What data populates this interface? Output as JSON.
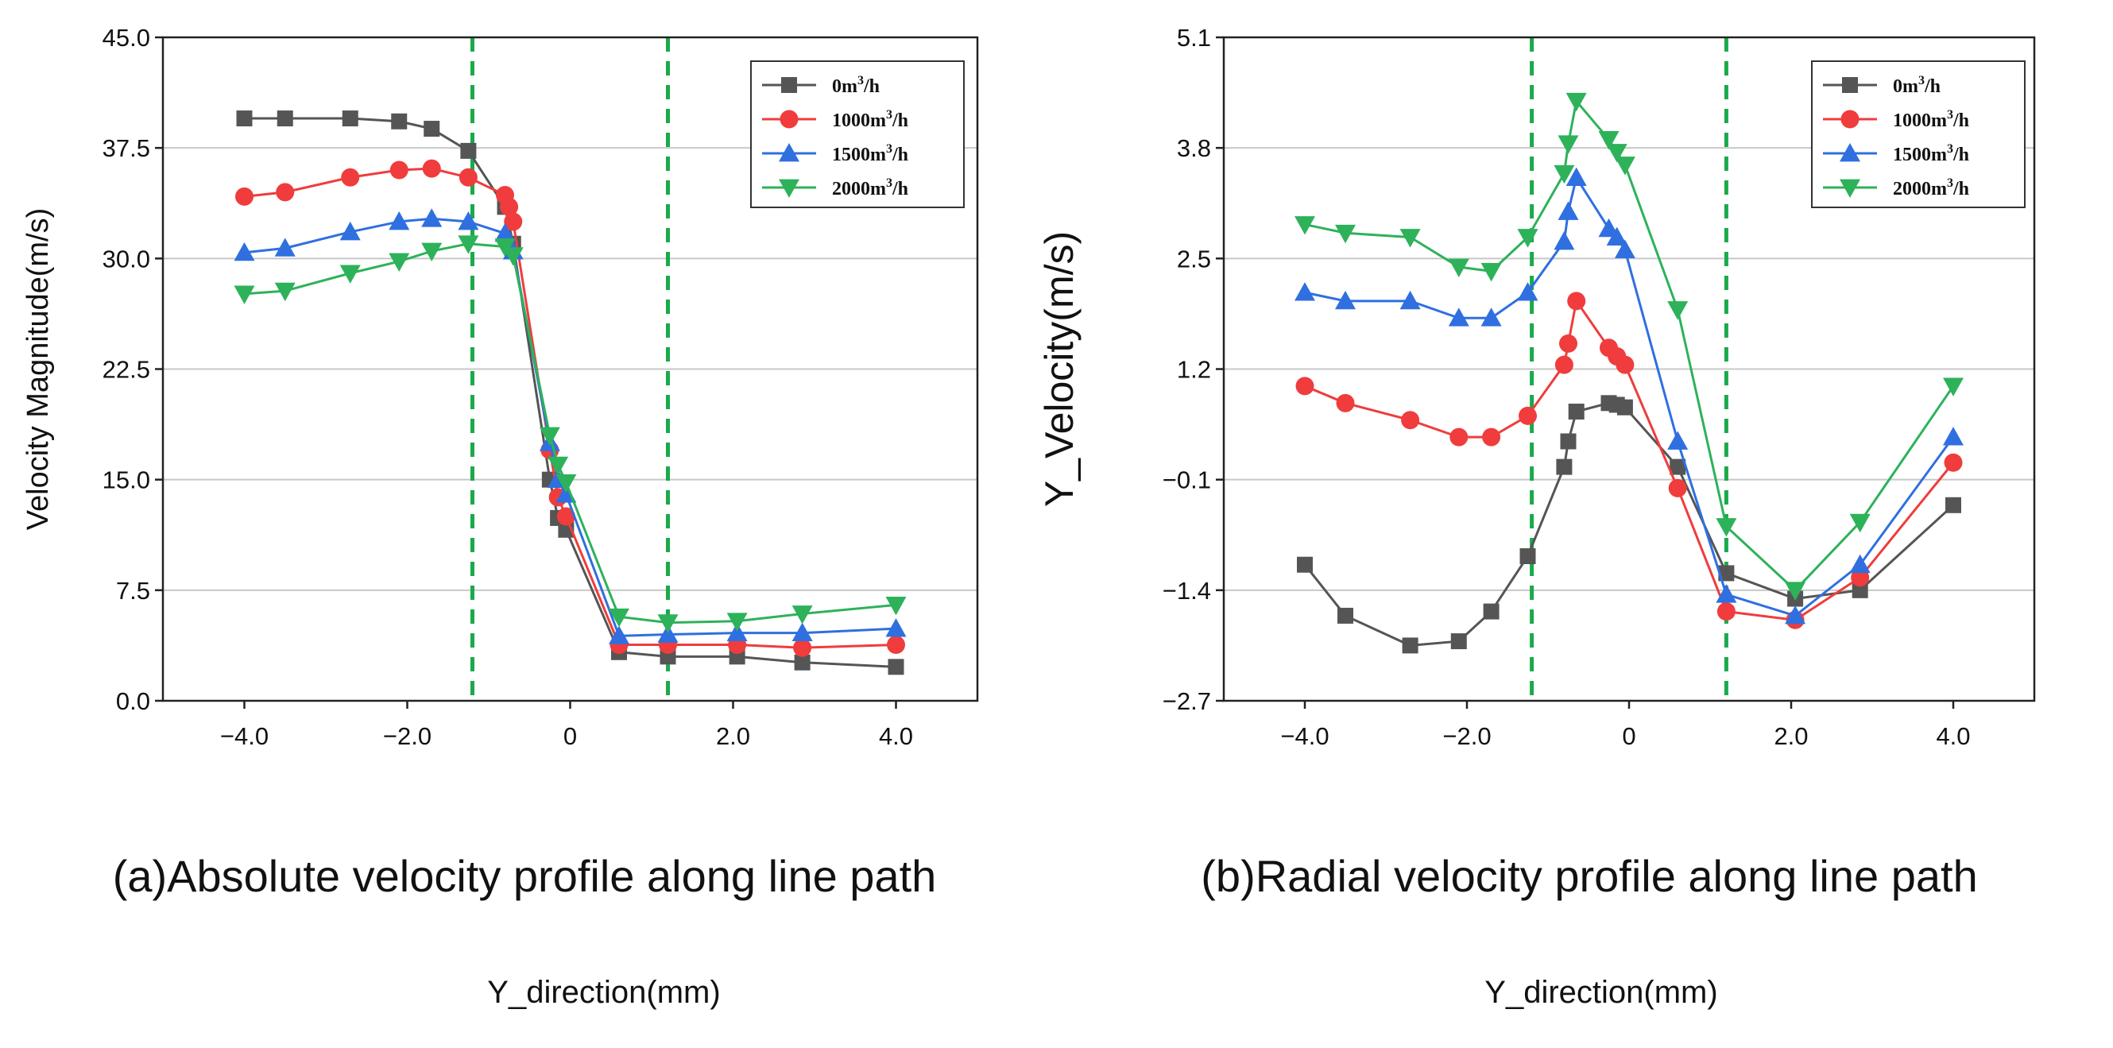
{
  "chart_data": [
    {
      "type": "line",
      "caption": "(a)Absolute velocity profile along line path",
      "xlabel": "Y_direction(mm)",
      "ylabel": "Velocity Magnitude(m/s)",
      "xlim": [
        -5,
        5
      ],
      "ylim": [
        0,
        45
      ],
      "xticks": [
        -4,
        -2,
        0,
        2,
        4
      ],
      "xtick_labels": [
        "−4.0",
        "−2.0",
        "0",
        "2.0",
        "4.0"
      ],
      "yticks": [
        0,
        7.5,
        15,
        22.5,
        30,
        37.5,
        45
      ],
      "ytick_labels": [
        "0.0",
        "7.5",
        "15.0",
        "22.5",
        "30.0",
        "37.5",
        "45.0"
      ],
      "grid": true,
      "legend_position": "top-right",
      "vlines": [
        -1.2,
        1.2
      ],
      "series": [
        {
          "name": "0m³/h",
          "label_base": "0m",
          "label_sup": "3",
          "label_tail": "/h",
          "color": "#555555",
          "marker": "square",
          "x": [
            -4.0,
            -3.5,
            -2.7,
            -2.1,
            -1.7,
            -1.25,
            -0.8,
            -0.7,
            -0.25,
            -0.15,
            -0.05,
            0.6,
            1.2,
            2.05,
            2.85,
            4.0
          ],
          "y": [
            39.5,
            39.5,
            39.5,
            39.3,
            38.8,
            37.3,
            33.5,
            31.0,
            15.0,
            12.4,
            11.6,
            3.3,
            3.0,
            3.0,
            2.6,
            2.3
          ]
        },
        {
          "name": "1000m³/h",
          "label_base": "1000m",
          "label_sup": "3",
          "label_tail": "/h",
          "color": "#f03c3c",
          "marker": "circle",
          "x": [
            -4.0,
            -3.5,
            -2.7,
            -2.1,
            -1.7,
            -1.25,
            -0.8,
            -0.75,
            -0.7,
            -0.25,
            -0.15,
            -0.05,
            0.6,
            1.2,
            2.05,
            2.85,
            4.0
          ],
          "y": [
            34.2,
            34.5,
            35.5,
            36.0,
            36.1,
            35.5,
            34.3,
            33.5,
            32.5,
            17.0,
            13.8,
            12.5,
            3.8,
            3.8,
            3.8,
            3.6,
            3.8
          ]
        },
        {
          "name": "1500m³/h",
          "label_base": "1500m",
          "label_sup": "3",
          "label_tail": "/h",
          "color": "#2f6fe0",
          "marker": "triangle-up",
          "x": [
            -4.0,
            -3.5,
            -2.7,
            -2.1,
            -1.7,
            -1.25,
            -0.8,
            -0.7,
            -0.25,
            -0.15,
            -0.05,
            0.6,
            1.2,
            2.05,
            2.85,
            4.0
          ],
          "y": [
            30.4,
            30.7,
            31.8,
            32.5,
            32.7,
            32.5,
            31.7,
            30.5,
            17.5,
            15.0,
            14.0,
            4.4,
            4.5,
            4.6,
            4.6,
            4.9
          ]
        },
        {
          "name": "2000m³/h",
          "label_base": "2000m",
          "label_sup": "3",
          "label_tail": "/h",
          "color": "#2db25a",
          "marker": "triangle-down",
          "x": [
            -4.0,
            -3.5,
            -2.7,
            -2.1,
            -1.7,
            -1.25,
            -0.8,
            -0.7,
            -0.25,
            -0.15,
            -0.05,
            0.6,
            1.2,
            2.05,
            2.85,
            4.0
          ],
          "y": [
            27.6,
            27.8,
            29.0,
            29.8,
            30.5,
            31.0,
            30.8,
            30.2,
            18.0,
            16.0,
            14.8,
            5.7,
            5.3,
            5.4,
            5.9,
            6.5
          ]
        }
      ]
    },
    {
      "type": "line",
      "caption": "(b)Radial velocity profile along line path",
      "xlabel": "Y_direction(mm)",
      "ylabel": "Y_Velocity(m/s)",
      "xlim": [
        -5,
        5
      ],
      "ylim": [
        -2.7,
        5.1
      ],
      "xticks": [
        -4,
        -2,
        0,
        2,
        4
      ],
      "xtick_labels": [
        "−4.0",
        "−2.0",
        "0",
        "2.0",
        "4.0"
      ],
      "yticks": [
        -2.7,
        -1.4,
        -0.1,
        1.2,
        2.5,
        3.8,
        5.1
      ],
      "ytick_labels": [
        "−2.7",
        "−1.4",
        "−0.1",
        "1.2",
        "2.5",
        "3.8",
        "5.1"
      ],
      "grid": true,
      "legend_position": "top-right",
      "vlines": [
        -1.2,
        1.2
      ],
      "series": [
        {
          "name": "0m³/h",
          "label_base": "0m",
          "label_sup": "3",
          "label_tail": "/h",
          "color": "#555555",
          "marker": "square",
          "x": [
            -4.0,
            -3.5,
            -2.7,
            -2.1,
            -1.7,
            -1.25,
            -0.8,
            -0.75,
            -0.65,
            -0.25,
            -0.15,
            -0.05,
            0.6,
            1.2,
            2.05,
            2.85,
            4.0
          ],
          "y": [
            -1.1,
            -1.7,
            -2.05,
            -2.0,
            -1.65,
            -1.0,
            0.05,
            0.35,
            0.7,
            0.8,
            0.78,
            0.75,
            0.05,
            -1.2,
            -1.5,
            -1.4,
            -0.4
          ]
        },
        {
          "name": "1000m³/h",
          "label_base": "1000m",
          "label_sup": "3",
          "label_tail": "/h",
          "color": "#f03c3c",
          "marker": "circle",
          "x": [
            -4.0,
            -3.5,
            -2.7,
            -2.1,
            -1.7,
            -1.25,
            -0.8,
            -0.75,
            -0.65,
            -0.25,
            -0.15,
            -0.05,
            0.6,
            1.2,
            2.05,
            2.85,
            4.0
          ],
          "y": [
            1.0,
            0.8,
            0.6,
            0.4,
            0.4,
            0.65,
            1.25,
            1.5,
            2.0,
            1.45,
            1.35,
            1.25,
            -0.2,
            -1.65,
            -1.75,
            -1.25,
            0.1
          ]
        },
        {
          "name": "1500m³/h",
          "label_base": "1500m",
          "label_sup": "3",
          "label_tail": "/h",
          "color": "#2f6fe0",
          "marker": "triangle-up",
          "x": [
            -4.0,
            -3.5,
            -2.7,
            -2.1,
            -1.7,
            -1.25,
            -0.8,
            -0.75,
            -0.65,
            -0.25,
            -0.15,
            -0.05,
            0.6,
            1.2,
            2.05,
            2.85,
            4.0
          ],
          "y": [
            2.1,
            2.0,
            2.0,
            1.8,
            1.8,
            2.1,
            2.7,
            3.05,
            3.45,
            2.85,
            2.75,
            2.6,
            0.35,
            -1.45,
            -1.7,
            -1.1,
            0.4
          ]
        },
        {
          "name": "2000m³/h",
          "label_base": "2000m",
          "label_sup": "3",
          "label_tail": "/h",
          "color": "#2db25a",
          "marker": "triangle-down",
          "x": [
            -4.0,
            -3.5,
            -2.7,
            -2.1,
            -1.7,
            -1.25,
            -0.8,
            -0.75,
            -0.65,
            -0.25,
            -0.15,
            -0.05,
            0.6,
            1.2,
            2.05,
            2.85,
            4.0
          ],
          "y": [
            2.9,
            2.8,
            2.75,
            2.4,
            2.35,
            2.75,
            3.5,
            3.85,
            4.35,
            3.9,
            3.75,
            3.6,
            1.9,
            -0.65,
            -1.4,
            -0.6,
            1.0
          ]
        }
      ]
    }
  ]
}
